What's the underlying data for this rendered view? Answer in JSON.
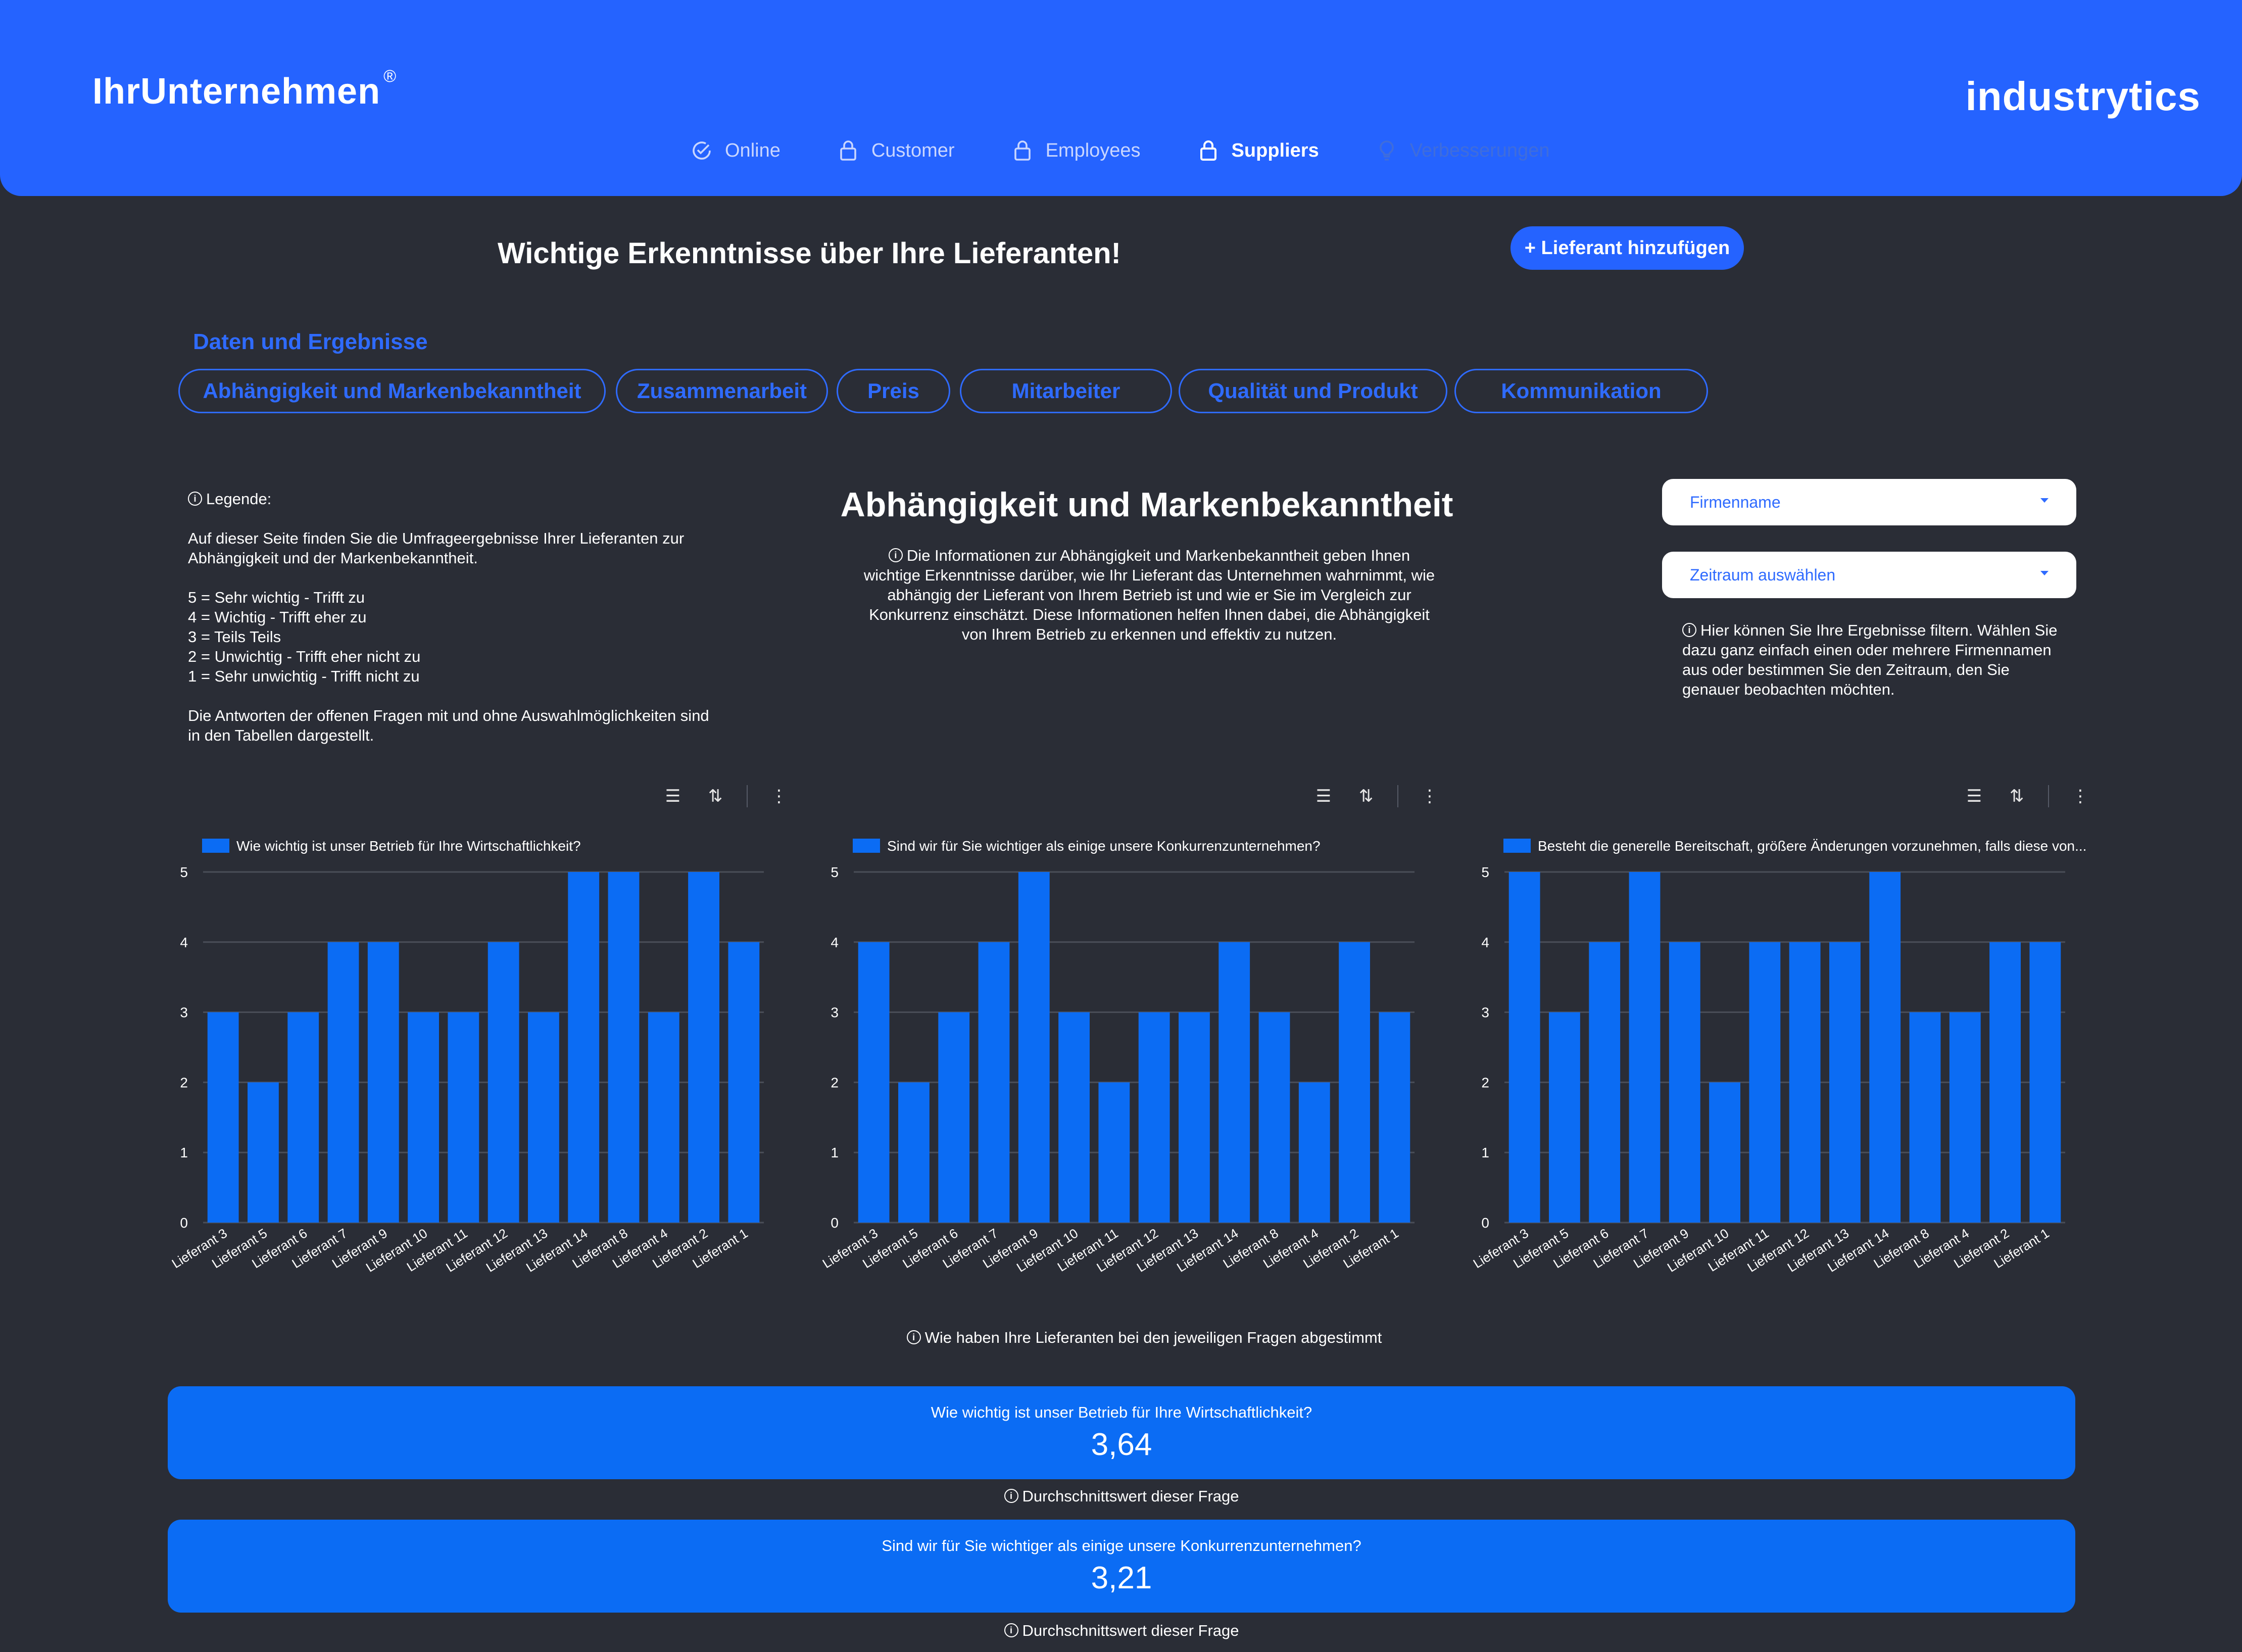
{
  "header": {
    "brand": "IhrUnternehmen",
    "brand_mark": "®",
    "vendor_logo": "industrytics",
    "nav": [
      {
        "label": "Online",
        "icon": "check-circle-icon",
        "state": "normal"
      },
      {
        "label": "Customer",
        "icon": "lock-icon",
        "state": "normal"
      },
      {
        "label": "Employees",
        "icon": "lock-icon",
        "state": "normal"
      },
      {
        "label": "Suppliers",
        "icon": "lock-icon",
        "state": "active"
      },
      {
        "label": "Verbesserungen",
        "icon": "lightbulb-icon",
        "state": "disabled"
      }
    ]
  },
  "page": {
    "title": "Wichtige Erkenntnisse über Ihre Lieferanten!",
    "add_button": "+ Lieferant hinzufügen",
    "section_label": "Daten und Ergebnisse",
    "tabs": [
      "Abhängigkeit und Markenbekanntheit",
      "Zusammenarbeit",
      "Preis",
      "Mitarbeiter",
      "Qualität und Produkt",
      "Kommunikation"
    ]
  },
  "legend": {
    "title": "Legende:",
    "intro": "Auf dieser Seite finden Sie die Umfrageergebnisse Ihrer Lieferanten zur Abhängigkeit und der Markenbekanntheit.",
    "scale": [
      "5 = Sehr wichtig - Trifft zu",
      "4 = Wichtig - Trifft eher zu",
      "3 = Teils Teils",
      "2 = Unwichtig - Trifft eher nicht zu",
      "1 = Sehr unwichtig - Trifft nicht zu"
    ],
    "outro": "Die Antworten der offenen Fragen mit und ohne Auswahlmöglichkeiten sind in den Tabellen dargestellt."
  },
  "section": {
    "heading": "Abhängigkeit und Markenbekanntheit",
    "description": "Die Informationen zur Abhängigkeit und Markenbekanntheit geben Ihnen wichtige Erkenntnisse darüber, wie Ihr Lieferant das Unternehmen wahrnimmt, wie abhängig der Lieferant von Ihrem Betrieb ist und wie er Sie im Vergleich zur Konkurrenz einschätzt. Diese Informationen helfen Ihnen dabei, die Abhängigkeit von Ihrem Betrieb zu erkennen und effektiv zu nutzen."
  },
  "filters": {
    "company": "Firmenname",
    "period": "Zeitraum auswählen",
    "info": "Hier können Sie Ihre Ergebnisse filtern. Wählen Sie dazu ganz einfach einen oder mehrere Firmennamen aus oder  bestimmen Sie den Zeitraum, den Sie genauer beobachten möchten."
  },
  "chart_data": [
    {
      "type": "bar",
      "categories": [
        "Lieferant 3",
        "Lieferant 5",
        "Lieferant 6",
        "Lieferant 7",
        "Lieferant 9",
        "Lieferant 10",
        "Lieferant 11",
        "Lieferant 12",
        "Lieferant 13",
        "Lieferant 14",
        "Lieferant 8",
        "Lieferant 4",
        "Lieferant 2",
        "Lieferant 1"
      ],
      "series": [
        {
          "name": "Wie wichtig ist unser Betrieb für Ihre Wirtschaftlichkeit?",
          "values": [
            3,
            2,
            3,
            4,
            4,
            3,
            3,
            4,
            3,
            5,
            5,
            3,
            5,
            4
          ]
        }
      ],
      "ylim": [
        0,
        5
      ],
      "yticks": [
        0,
        1,
        2,
        3,
        4,
        5
      ],
      "grid": true,
      "legend": "top-left",
      "color": "#0b6cf4"
    },
    {
      "type": "bar",
      "categories": [
        "Lieferant 3",
        "Lieferant 5",
        "Lieferant 6",
        "Lieferant 7",
        "Lieferant 9",
        "Lieferant 10",
        "Lieferant 11",
        "Lieferant 12",
        "Lieferant 13",
        "Lieferant 14",
        "Lieferant 8",
        "Lieferant 4",
        "Lieferant 2",
        "Lieferant 1"
      ],
      "series": [
        {
          "name": "Sind wir für Sie wichtiger als einige unsere Konkurrenzunternehmen?",
          "values": [
            4,
            2,
            3,
            4,
            5,
            3,
            2,
            3,
            3,
            4,
            3,
            2,
            4,
            3
          ]
        }
      ],
      "ylim": [
        0,
        5
      ],
      "yticks": [
        0,
        1,
        2,
        3,
        4,
        5
      ],
      "grid": true,
      "legend": "top-left",
      "color": "#0b6cf4"
    },
    {
      "type": "bar",
      "categories": [
        "Lieferant 3",
        "Lieferant 5",
        "Lieferant 6",
        "Lieferant 7",
        "Lieferant 9",
        "Lieferant 10",
        "Lieferant 11",
        "Lieferant 12",
        "Lieferant 13",
        "Lieferant 14",
        "Lieferant 8",
        "Lieferant 4",
        "Lieferant 2",
        "Lieferant 1"
      ],
      "series": [
        {
          "name": "Besteht die generelle Bereitschaft, größere Änderungen vorzunehmen, falls diese von...",
          "values": [
            5,
            3,
            4,
            5,
            4,
            2,
            4,
            4,
            4,
            5,
            3,
            3,
            4,
            4
          ]
        }
      ],
      "ylim": [
        0,
        5
      ],
      "yticks": [
        0,
        1,
        2,
        3,
        4,
        5
      ],
      "grid": true,
      "legend": "top-left",
      "color": "#0b6cf4"
    }
  ],
  "votes_note": "Wie haben Ihre Lieferanten bei den jeweiligen Fragen abgestimmt",
  "stats": [
    {
      "question": "Wie wichtig ist unser Betrieb für Ihre Wirtschaftlichkeit?",
      "value": "3,64",
      "note": "Durchschnittswert dieser Frage"
    },
    {
      "question": "Sind wir für Sie wichtiger als einige unsere Konkurrenzunternehmen?",
      "value": "3,21",
      "note": "Durchschnittswert dieser Frage"
    }
  ],
  "colors": {
    "header": "#2563ff",
    "background": "#2a2d36",
    "accent": "#2f6bff",
    "bar": "#0b6cf4"
  }
}
